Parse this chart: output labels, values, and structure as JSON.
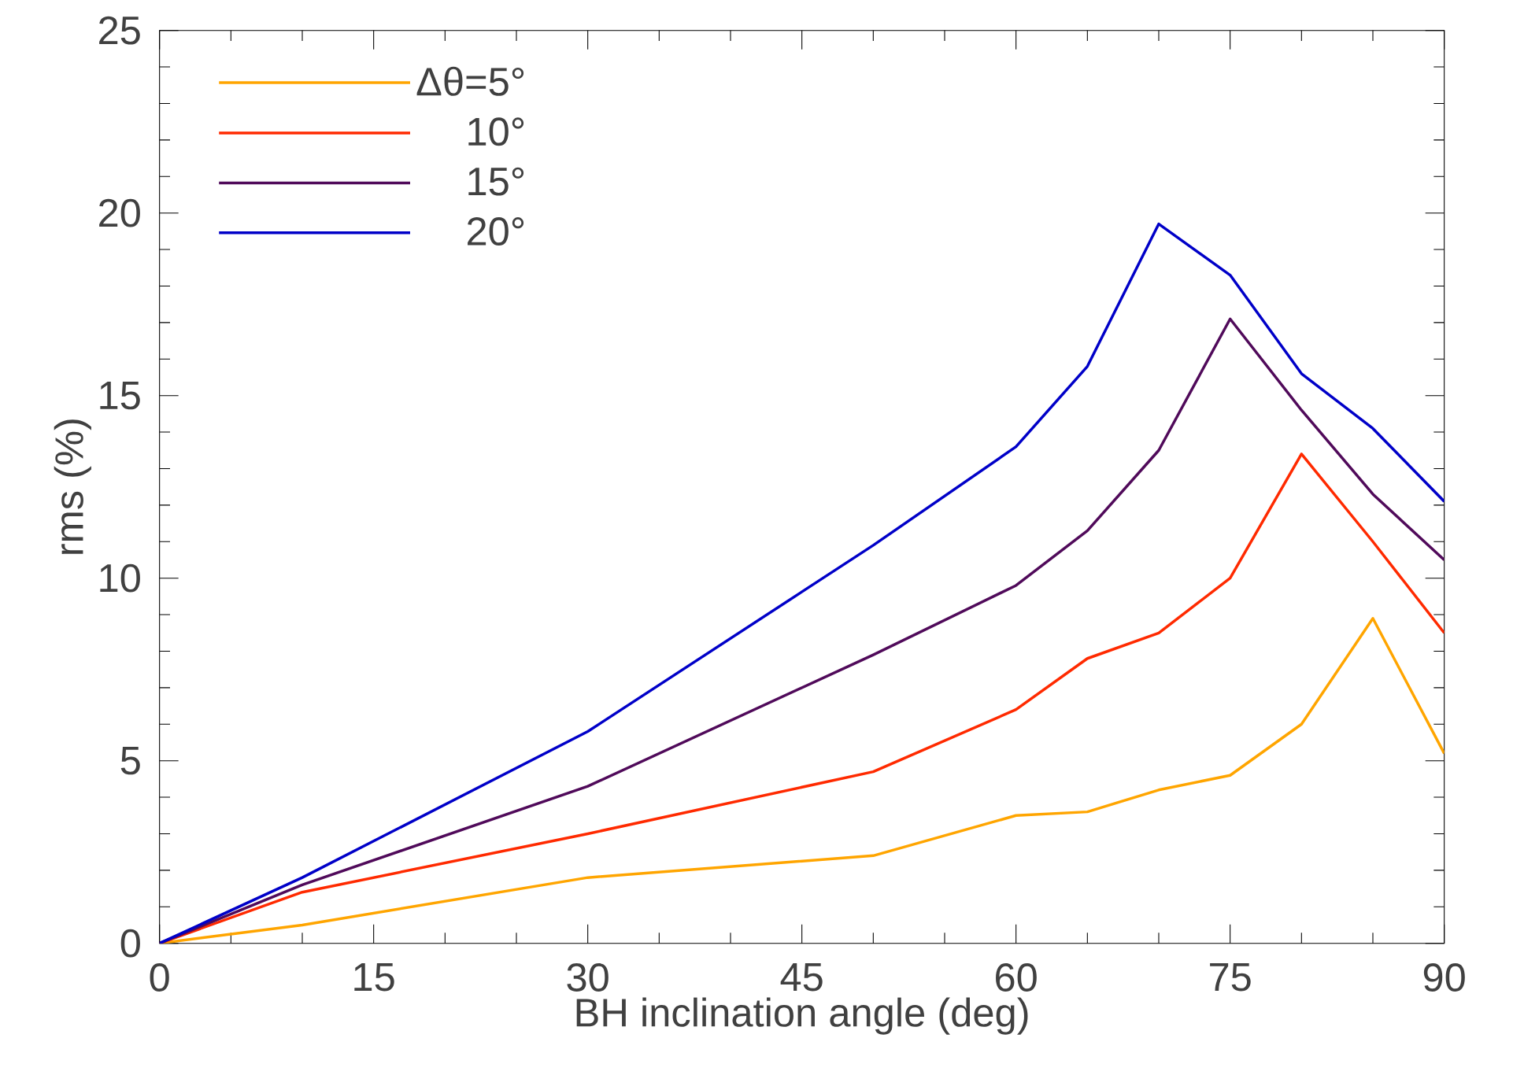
{
  "chart_data": {
    "type": "line",
    "xlabel": "BH inclination angle (deg)",
    "ylabel": "rms (%)",
    "x": [
      0,
      10,
      30,
      50,
      60,
      65,
      70,
      75,
      80,
      85,
      90
    ],
    "series": [
      {
        "name": "Δθ=5°",
        "color": "#ffa500",
        "values": [
          0,
          0.5,
          1.8,
          2.4,
          3.5,
          3.6,
          4.2,
          4.6,
          6.0,
          8.9,
          5.2
        ]
      },
      {
        "name": "10°",
        "color": "#ff2a00",
        "values": [
          0,
          1.4,
          3.0,
          4.7,
          6.4,
          7.8,
          8.5,
          10.0,
          13.4,
          11.0,
          8.5
        ]
      },
      {
        "name": "15°",
        "color": "#500a5a",
        "values": [
          0,
          1.6,
          4.3,
          7.9,
          9.8,
          11.3,
          13.5,
          17.1,
          14.6,
          12.3,
          10.5
        ]
      },
      {
        "name": "20°",
        "color": "#0000c8",
        "values": [
          0,
          1.8,
          5.8,
          10.9,
          13.6,
          15.8,
          19.7,
          18.3,
          15.6,
          14.1,
          12.1
        ]
      }
    ],
    "xlim": [
      0,
      90
    ],
    "ylim": [
      0,
      25
    ],
    "xticks": [
      0,
      15,
      30,
      45,
      60,
      75,
      90
    ],
    "yticks": [
      0,
      5,
      10,
      15,
      20,
      25
    ],
    "legend": "top left",
    "grid": false,
    "marker": "none",
    "line_style": "solid"
  }
}
